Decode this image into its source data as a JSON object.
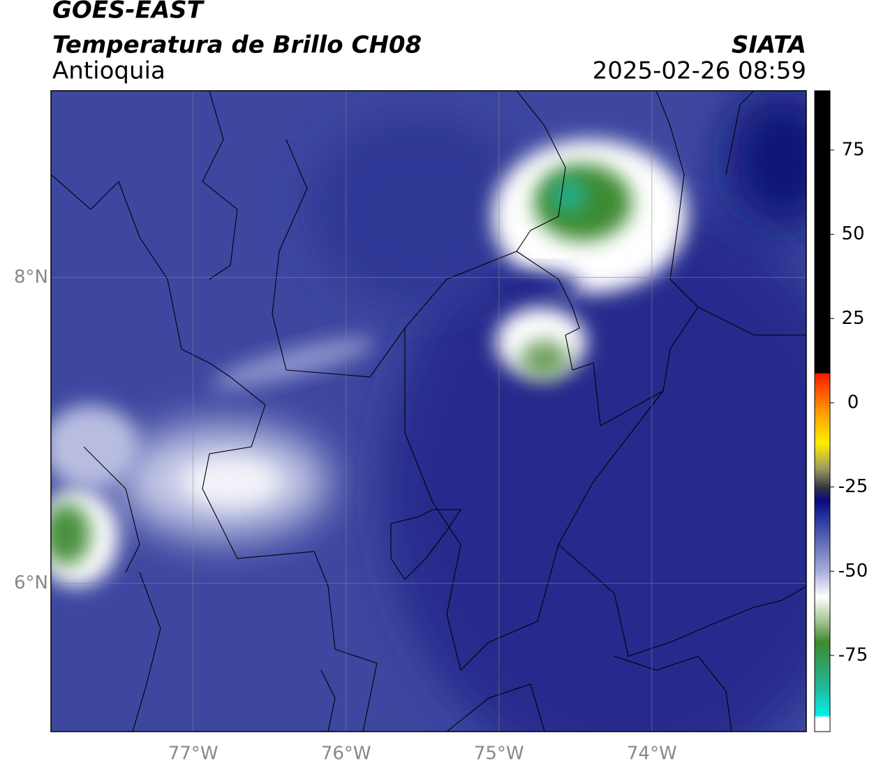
{
  "header": {
    "title": "GOES-EAST",
    "subtitle": "Temperatura de Brillo CH08",
    "region": "Antioquia",
    "source": "SIATA",
    "datetime": "2025-02-26 08:59"
  },
  "map": {
    "xlim": [
      -77.93,
      -72.99
    ],
    "ylim": [
      5.03,
      9.22
    ],
    "xticks": [
      {
        "value": -77,
        "label": "77°W"
      },
      {
        "value": -76,
        "label": "76°W"
      },
      {
        "value": -75,
        "label": "75°W"
      },
      {
        "value": -74,
        "label": "74°W"
      }
    ],
    "yticks": [
      {
        "value": 8,
        "label": "8°N"
      },
      {
        "value": 6,
        "label": "6°N"
      }
    ],
    "grid": true
  },
  "colorbar": {
    "lim": [
      -97.6,
      92.6
    ],
    "ticks": [
      75,
      50,
      25,
      0,
      -25,
      -50,
      -75
    ]
  }
}
